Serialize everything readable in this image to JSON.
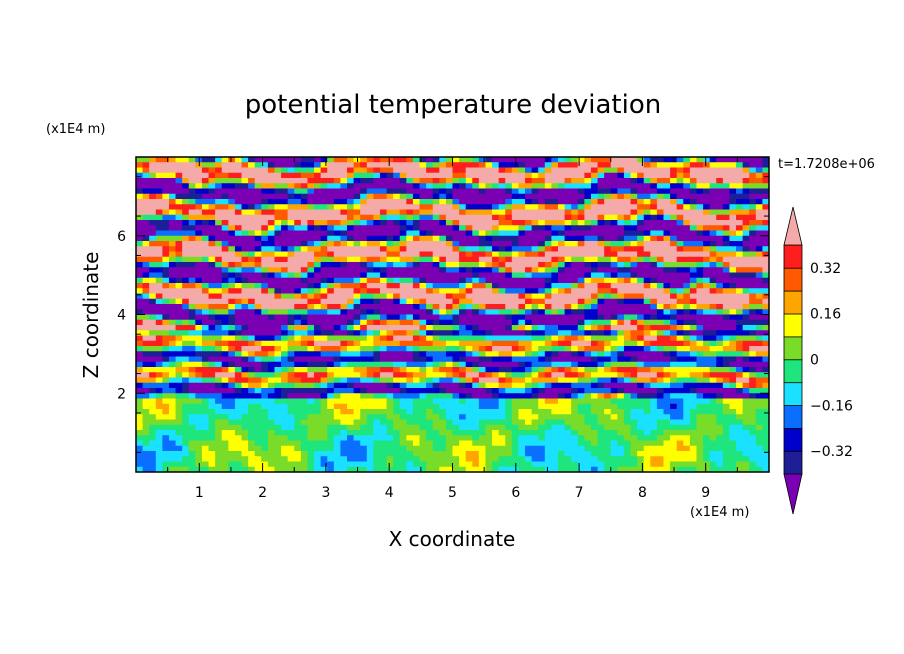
{
  "chart_data": {
    "type": "heatmap",
    "title": "potential temperature deviation",
    "xlabel": "X coordinate",
    "ylabel": "Z coordinate",
    "x_scale_label": "(x1E4 m)",
    "y_scale_label": "(x1E4 m)",
    "time_label": "t=1.7208e+06",
    "xlim": [
      0,
      10
    ],
    "ylim": [
      0,
      8
    ],
    "x_ticks": [
      "1",
      "2",
      "3",
      "4",
      "5",
      "6",
      "7",
      "8",
      "9"
    ],
    "y_ticks": [
      "2",
      "4",
      "6"
    ],
    "colorbar": {
      "levels": [
        -0.4,
        -0.32,
        -0.24,
        -0.16,
        -0.08,
        0,
        0.08,
        0.16,
        0.24,
        0.32,
        0.4
      ],
      "colors": [
        "#7b00b4",
        "#1e1e96",
        "#0000cd",
        "#0a6eff",
        "#19e1ff",
        "#1ee67d",
        "#78dc28",
        "#ffff00",
        "#ffa500",
        "#ff5a00",
        "#ff1e1e",
        "#f5aaaa"
      ],
      "labels": [
        "0.32",
        "0.16",
        "0",
        "−0.16",
        "−0.32"
      ],
      "label_values": [
        0.32,
        0.16,
        0,
        -0.16,
        -0.32
      ]
    }
  }
}
